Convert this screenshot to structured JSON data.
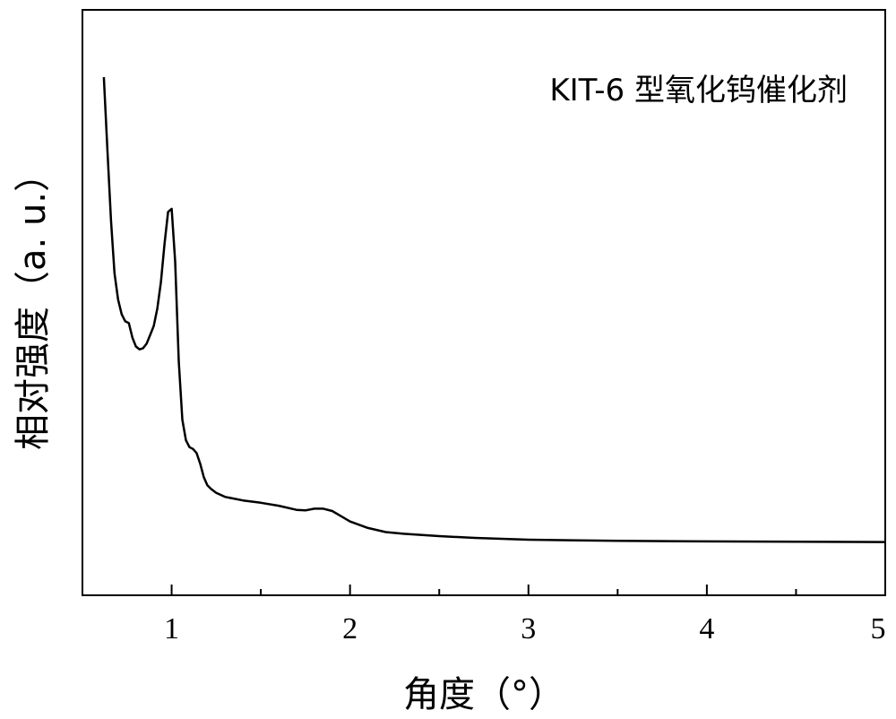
{
  "chart_data": {
    "type": "line",
    "title": "",
    "xlabel": "角度（°）",
    "ylabel": "相对强度（a. u.）",
    "xlim": [
      0.5,
      5
    ],
    "ylim": [
      0,
      100
    ],
    "x_ticks": [
      1,
      2,
      3,
      4,
      5
    ],
    "x_tick_labels": [
      "1",
      "2",
      "3",
      "4",
      "5"
    ],
    "x_minor_ticks": [
      1.5,
      2.5,
      3.5,
      4.5
    ],
    "y_ticks": [],
    "grid": false,
    "legend_position": "top-right",
    "series": [
      {
        "name": "KIT-6 型氧化钨催化剂",
        "color": "#000000",
        "x": [
          0.62,
          0.64,
          0.66,
          0.68,
          0.7,
          0.72,
          0.74,
          0.76,
          0.78,
          0.8,
          0.82,
          0.84,
          0.86,
          0.88,
          0.9,
          0.92,
          0.94,
          0.96,
          0.98,
          1.0,
          1.02,
          1.04,
          1.06,
          1.08,
          1.1,
          1.12,
          1.14,
          1.16,
          1.18,
          1.2,
          1.22,
          1.25,
          1.3,
          1.4,
          1.5,
          1.6,
          1.7,
          1.75,
          1.8,
          1.85,
          1.9,
          1.95,
          2.0,
          2.1,
          2.2,
          2.3,
          2.5,
          2.7,
          3.0,
          3.5,
          4.0,
          4.5,
          5.0
        ],
        "y": [
          88.5,
          76,
          64,
          55,
          50.5,
          48,
          46.8,
          46.5,
          44,
          42.5,
          42,
          42.2,
          43,
          44.5,
          46,
          49,
          53.5,
          60,
          65.5,
          66,
          57,
          40,
          30,
          26.5,
          25.3,
          25,
          24.3,
          22.5,
          20.2,
          18.8,
          18.2,
          17.5,
          16.8,
          16.2,
          15.8,
          15.3,
          14.6,
          14.5,
          14.8,
          14.8,
          14.4,
          13.5,
          12.6,
          11.5,
          10.8,
          10.5,
          10.1,
          9.8,
          9.5,
          9.3,
          9.2,
          9.15,
          9.1
        ]
      }
    ]
  }
}
